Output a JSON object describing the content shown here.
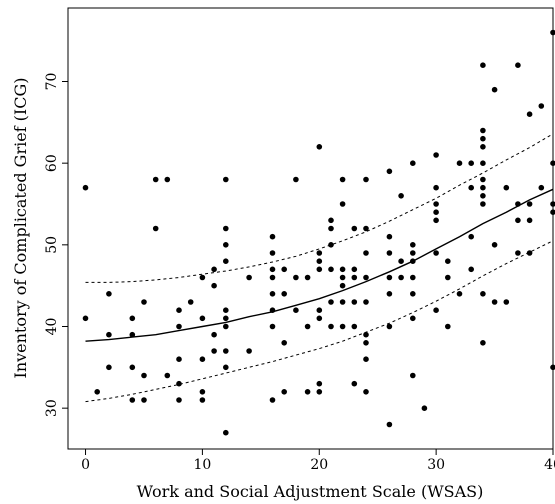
{
  "chart_data": {
    "type": "scatter",
    "title": "",
    "xlabel": "Work and Social Adjustment Scale (WSAS)",
    "ylabel": "Inventory of Complicated Grief (ICG)",
    "xlim": [
      -1.5,
      40
    ],
    "ylim": [
      25,
      79
    ],
    "xticks": [
      0,
      10,
      20,
      30,
      40
    ],
    "yticks": [
      30,
      40,
      50,
      60,
      70
    ],
    "grid": false,
    "legend": "none",
    "point_color": "#000000",
    "points": [
      [
        0,
        57
      ],
      [
        0,
        41
      ],
      [
        1,
        32
      ],
      [
        2,
        44
      ],
      [
        2,
        39
      ],
      [
        2,
        35
      ],
      [
        4,
        41
      ],
      [
        4,
        39
      ],
      [
        4,
        35
      ],
      [
        4,
        31
      ],
      [
        5,
        43
      ],
      [
        5,
        34
      ],
      [
        5,
        31
      ],
      [
        6,
        58
      ],
      [
        6,
        52
      ],
      [
        7,
        58
      ],
      [
        7,
        34
      ],
      [
        8,
        42
      ],
      [
        8,
        40
      ],
      [
        8,
        36
      ],
      [
        8,
        33
      ],
      [
        8,
        31
      ],
      [
        9,
        43
      ],
      [
        10,
        46
      ],
      [
        10,
        41
      ],
      [
        10,
        36
      ],
      [
        10,
        32
      ],
      [
        10,
        31
      ],
      [
        11,
        47
      ],
      [
        11,
        45
      ],
      [
        11,
        39
      ],
      [
        11,
        37
      ],
      [
        12,
        58
      ],
      [
        12,
        52
      ],
      [
        12,
        50
      ],
      [
        12,
        48
      ],
      [
        12,
        42
      ],
      [
        12,
        41
      ],
      [
        12,
        40
      ],
      [
        12,
        37
      ],
      [
        12,
        35
      ],
      [
        12,
        27
      ],
      [
        14,
        46
      ],
      [
        14,
        37
      ],
      [
        16,
        51
      ],
      [
        16,
        49
      ],
      [
        16,
        47
      ],
      [
        16,
        46
      ],
      [
        16,
        44
      ],
      [
        16,
        42
      ],
      [
        16,
        40
      ],
      [
        16,
        31
      ],
      [
        17,
        47
      ],
      [
        17,
        44
      ],
      [
        17,
        38
      ],
      [
        17,
        32
      ],
      [
        18,
        58
      ],
      [
        18,
        46
      ],
      [
        18,
        42
      ],
      [
        19,
        46
      ],
      [
        19,
        40
      ],
      [
        19,
        32
      ],
      [
        20,
        62
      ],
      [
        20,
        49
      ],
      [
        20,
        48
      ],
      [
        20,
        47
      ],
      [
        20,
        42
      ],
      [
        20,
        41
      ],
      [
        20,
        33
      ],
      [
        20,
        32
      ],
      [
        21,
        53
      ],
      [
        21,
        52
      ],
      [
        21,
        50
      ],
      [
        21,
        47
      ],
      [
        21,
        43
      ],
      [
        21,
        40
      ],
      [
        22,
        58
      ],
      [
        22,
        55
      ],
      [
        22,
        47
      ],
      [
        22,
        46
      ],
      [
        22,
        45
      ],
      [
        22,
        43
      ],
      [
        22,
        40
      ],
      [
        23,
        52
      ],
      [
        23,
        47
      ],
      [
        23,
        46
      ],
      [
        23,
        43
      ],
      [
        23,
        40
      ],
      [
        23,
        33
      ],
      [
        24,
        58
      ],
      [
        24,
        52
      ],
      [
        24,
        49
      ],
      [
        24,
        46
      ],
      [
        24,
        43
      ],
      [
        24,
        39
      ],
      [
        24,
        38
      ],
      [
        24,
        36
      ],
      [
        24,
        32
      ],
      [
        26,
        59
      ],
      [
        26,
        51
      ],
      [
        26,
        49
      ],
      [
        26,
        46
      ],
      [
        26,
        44
      ],
      [
        26,
        40
      ],
      [
        26,
        28
      ],
      [
        27,
        56
      ],
      [
        27,
        48
      ],
      [
        27,
        46
      ],
      [
        28,
        60
      ],
      [
        28,
        50
      ],
      [
        28,
        49
      ],
      [
        28,
        48
      ],
      [
        28,
        46
      ],
      [
        28,
        44
      ],
      [
        28,
        41
      ],
      [
        28,
        34
      ],
      [
        29,
        30
      ],
      [
        30,
        61
      ],
      [
        30,
        57
      ],
      [
        30,
        55
      ],
      [
        30,
        54
      ],
      [
        30,
        53
      ],
      [
        30,
        49
      ],
      [
        30,
        42
      ],
      [
        31,
        48
      ],
      [
        31,
        46
      ],
      [
        31,
        40
      ],
      [
        32,
        60
      ],
      [
        32,
        44
      ],
      [
        33,
        60
      ],
      [
        33,
        57
      ],
      [
        33,
        51
      ],
      [
        33,
        47
      ],
      [
        34,
        72
      ],
      [
        34,
        64
      ],
      [
        34,
        63
      ],
      [
        34,
        62
      ],
      [
        34,
        60
      ],
      [
        34,
        58
      ],
      [
        34,
        57
      ],
      [
        34,
        56
      ],
      [
        34,
        55
      ],
      [
        34,
        44
      ],
      [
        34,
        38
      ],
      [
        35,
        69
      ],
      [
        35,
        50
      ],
      [
        35,
        43
      ],
      [
        36,
        57
      ],
      [
        36,
        43
      ],
      [
        37,
        72
      ],
      [
        37,
        55
      ],
      [
        37,
        53
      ],
      [
        37,
        49
      ],
      [
        38,
        66
      ],
      [
        38,
        55
      ],
      [
        38,
        53
      ],
      [
        38,
        49
      ],
      [
        39,
        67
      ],
      [
        39,
        57
      ],
      [
        40,
        76
      ],
      [
        40,
        60
      ],
      [
        40,
        55
      ],
      [
        40,
        54
      ],
      [
        40,
        35
      ]
    ],
    "fit_curve": {
      "x": [
        0,
        2,
        4,
        6,
        8,
        10,
        12,
        14,
        16,
        18,
        20,
        22,
        24,
        26,
        28,
        30,
        32,
        34,
        36,
        38,
        40
      ],
      "y": [
        38.2,
        38.4,
        38.7,
        39.0,
        39.5,
        40.0,
        40.5,
        41.2,
        41.8,
        42.6,
        43.4,
        44.4,
        45.5,
        46.7,
        48.0,
        49.5,
        51.0,
        52.6,
        54.0,
        55.5,
        56.8
      ]
    },
    "ci_upper": {
      "x": [
        0,
        2,
        4,
        6,
        8,
        10,
        12,
        14,
        16,
        18,
        20,
        22,
        24,
        26,
        28,
        30,
        32,
        34,
        36,
        38,
        40
      ],
      "y": [
        45.4,
        45.4,
        45.5,
        45.7,
        46.0,
        46.4,
        46.8,
        47.3,
        47.9,
        48.6,
        49.5,
        50.5,
        51.6,
        52.9,
        54.3,
        55.7,
        57.3,
        58.8,
        60.4,
        61.9,
        63.6
      ]
    },
    "ci_lower": {
      "x": [
        0,
        2,
        4,
        6,
        8,
        10,
        12,
        14,
        16,
        18,
        20,
        22,
        24,
        26,
        28,
        30,
        32,
        34,
        36,
        38,
        40
      ],
      "y": [
        30.8,
        31.2,
        31.7,
        32.3,
        32.9,
        33.6,
        34.3,
        35.0,
        35.7,
        36.5,
        37.3,
        38.2,
        39.3,
        40.4,
        41.7,
        43.1,
        44.6,
        46.2,
        47.7,
        49.1,
        50.5
      ]
    }
  }
}
